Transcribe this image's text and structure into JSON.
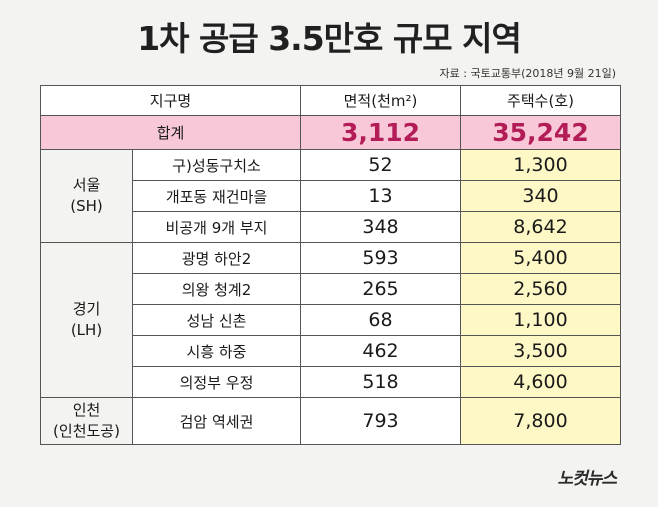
{
  "title": "1차 공급 3.5만호 규모 지역",
  "source": "자료 : 국토교통부(2018년 9월 21일)",
  "headers": {
    "district": "지구명",
    "area": "면적(천m²)",
    "houses": "주택수(호)"
  },
  "total": {
    "label": "합계",
    "area": "3,112",
    "houses": "35,242"
  },
  "regions": [
    {
      "name_line1": "서울",
      "name_line2": "(SH)"
    },
    {
      "name_line1": "경기",
      "name_line2": "(LH)"
    },
    {
      "name_line1": "인천",
      "name_line2": "(인천도공)"
    }
  ],
  "rows": [
    {
      "district": "구)성동구치소",
      "area": "52",
      "houses": "1,300"
    },
    {
      "district": "개포동 재건마을",
      "area": "13",
      "houses": "340"
    },
    {
      "district": "비공개 9개 부지",
      "area": "348",
      "houses": "8,642"
    },
    {
      "district": "광명 하안2",
      "area": "593",
      "houses": "5,400"
    },
    {
      "district": "의왕 청계2",
      "area": "265",
      "houses": "2,560"
    },
    {
      "district": "성남 신촌",
      "area": "68",
      "houses": "1,100"
    },
    {
      "district": "시흥 하중",
      "area": "462",
      "houses": "3,500"
    },
    {
      "district": "의정부 우정",
      "area": "518",
      "houses": "4,600"
    },
    {
      "district": "검암 역세권",
      "area": "793",
      "houses": "7,800"
    }
  ],
  "logo": "노컷뉴스",
  "colors": {
    "total_bg": "#f9c8d8",
    "total_text": "#b21d57",
    "houses_bg": "#fdf8c6"
  }
}
